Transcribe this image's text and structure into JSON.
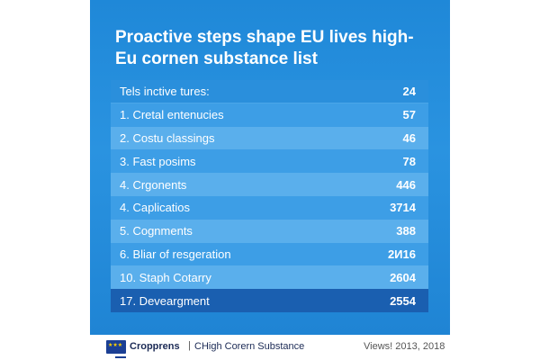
{
  "title": {
    "line1": "Proactive steps shape EU lives high-",
    "line2": "Eu cornen substance list"
  },
  "table": {
    "header": {
      "label": "Tels inctive tures:",
      "value": "24"
    },
    "rows": [
      {
        "label": "1.  Cretal entenucies",
        "value": "57"
      },
      {
        "label": "2.  Costu classings",
        "value": "46"
      },
      {
        "label": "3.  Fast posims",
        "value": "78"
      },
      {
        "label": "4.  Crgonents",
        "value": "446"
      },
      {
        "label": "4.  Caplicatios",
        "value": "3714"
      },
      {
        "label": "5.  Cognments",
        "value": "388"
      },
      {
        "label": "6.  Bliar of resgeration",
        "value": "2И16"
      },
      {
        "label": "10.  Staph Cotarry",
        "value": "2604"
      },
      {
        "label": "17.  Deveargment",
        "value": "2554"
      }
    ]
  },
  "footer": {
    "brand": "Cropprens",
    "separator": "|",
    "subtitle": "CHigh Corern Substance",
    "views": "Views! 2013, 2018",
    "flag_icon": "eu-flag-icon"
  },
  "colors": {
    "panel": "#1f88d8",
    "row_light": "#5aafec",
    "row_mid": "#3d9ee6",
    "row_dark": "#1a5fb0"
  }
}
